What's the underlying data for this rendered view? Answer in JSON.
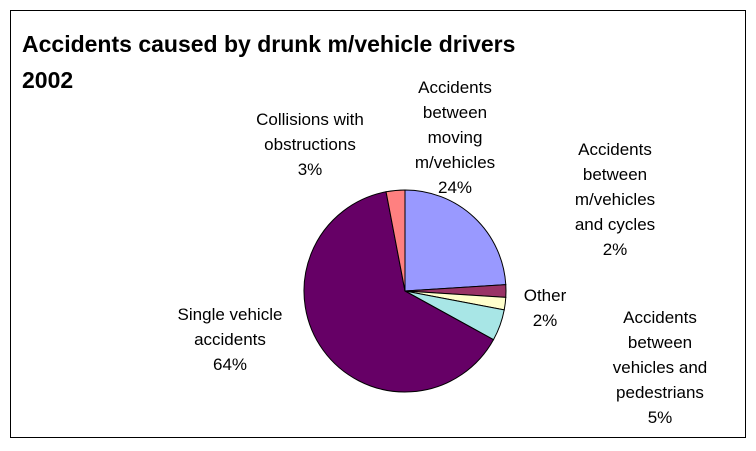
{
  "chart_data": {
    "type": "pie",
    "title": "Accidents caused by drunk m/vehicle drivers 2002",
    "categories": [
      "Accidents between moving m/vehicles",
      "Accidents between m/vehicles and cycles",
      "Other",
      "Accidents between vehicles and pedestrians",
      "Single vehicle accidents",
      "Collisions with obstructions"
    ],
    "values": [
      24,
      2,
      2,
      5,
      64,
      3
    ],
    "value_labels": [
      "24%",
      "2%",
      "2%",
      "5%",
      "64%",
      "3%"
    ],
    "colors": [
      "#9999ff",
      "#993366",
      "#ffffcc",
      "#a8e6e6",
      "#660066",
      "#ff8080"
    ]
  }
}
